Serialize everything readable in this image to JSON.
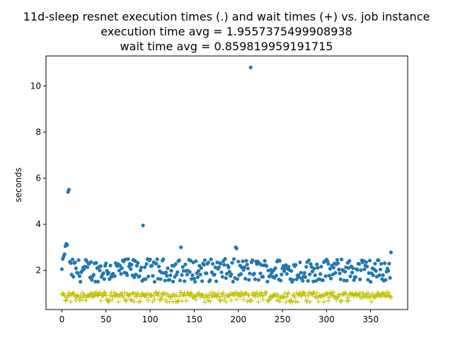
{
  "chart_data": {
    "type": "scatter",
    "title": [
      "11d-sleep resnet execution times (.) and wait times (+) vs. job instance",
      "execution time avg = 1.9557375499908938",
      "wait time avg = 0.859819959191715"
    ],
    "xlabel": "",
    "ylabel": "seconds",
    "xlim": [
      -18,
      392
    ],
    "ylim": [
      0.3,
      11.3
    ],
    "xticks": [
      0,
      50,
      100,
      150,
      200,
      250,
      300,
      350
    ],
    "yticks": [
      2,
      4,
      6,
      8,
      10
    ],
    "grid": false,
    "n_points": 374,
    "series": [
      {
        "marker": "dot",
        "color": "#1f77b4",
        "typical_range": [
          1.5,
          2.5
        ],
        "outliers": [
          {
            "x": 0,
            "y": 2.05
          },
          {
            "x": 2,
            "y": 2.6
          },
          {
            "x": 3,
            "y": 2.7
          },
          {
            "x": 4,
            "y": 3.05
          },
          {
            "x": 5,
            "y": 3.15
          },
          {
            "x": 6,
            "y": 3.1
          },
          {
            "x": 7,
            "y": 5.4
          },
          {
            "x": 8,
            "y": 5.5
          },
          {
            "x": 92,
            "y": 3.95
          },
          {
            "x": 135,
            "y": 3.0
          },
          {
            "x": 197,
            "y": 3.0
          },
          {
            "x": 198,
            "y": 2.95
          },
          {
            "x": 214,
            "y": 10.8
          },
          {
            "x": 373,
            "y": 2.78
          }
        ]
      },
      {
        "marker": "plus",
        "color": "#bfbf00",
        "typical_range": [
          0.6,
          1.05
        ]
      }
    ]
  }
}
